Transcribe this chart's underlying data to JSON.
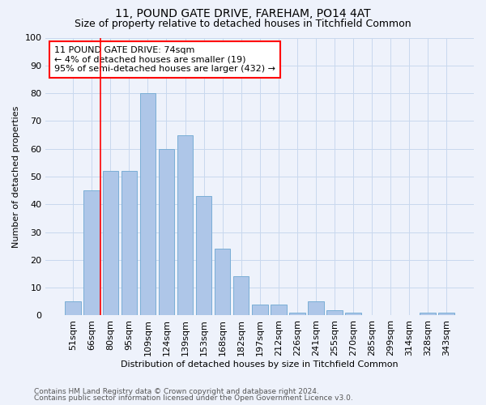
{
  "title1": "11, POUND GATE DRIVE, FAREHAM, PO14 4AT",
  "title2": "Size of property relative to detached houses in Titchfield Common",
  "xlabel": "Distribution of detached houses by size in Titchfield Common",
  "ylabel": "Number of detached properties",
  "footnote1": "Contains HM Land Registry data © Crown copyright and database right 2024.",
  "footnote2": "Contains public sector information licensed under the Open Government Licence v3.0.",
  "categories": [
    "51sqm",
    "66sqm",
    "80sqm",
    "95sqm",
    "109sqm",
    "124sqm",
    "139sqm",
    "153sqm",
    "168sqm",
    "182sqm",
    "197sqm",
    "212sqm",
    "226sqm",
    "241sqm",
    "255sqm",
    "270sqm",
    "285sqm",
    "299sqm",
    "314sqm",
    "328sqm",
    "343sqm"
  ],
  "values": [
    5,
    45,
    52,
    52,
    80,
    60,
    65,
    43,
    24,
    14,
    4,
    4,
    1,
    5,
    2,
    1,
    0,
    0,
    0,
    1,
    1
  ],
  "bar_color": "#aec6e8",
  "bar_edge_color": "#7aaed6",
  "grid_color": "#c8d8ee",
  "annotation_text": "11 POUND GATE DRIVE: 74sqm\n← 4% of detached houses are smaller (19)\n95% of semi-detached houses are larger (432) →",
  "annotation_box_color": "white",
  "annotation_box_edge_color": "red",
  "vline_color": "red",
  "vline_x": 1.48,
  "ylim": [
    0,
    100
  ],
  "yticks": [
    0,
    10,
    20,
    30,
    40,
    50,
    60,
    70,
    80,
    90,
    100
  ],
  "background_color": "#eef2fb",
  "title1_fontsize": 10,
  "title2_fontsize": 9,
  "axis_label_fontsize": 8,
  "tick_fontsize": 8,
  "annotation_fontsize": 8,
  "footnote_fontsize": 6.5
}
